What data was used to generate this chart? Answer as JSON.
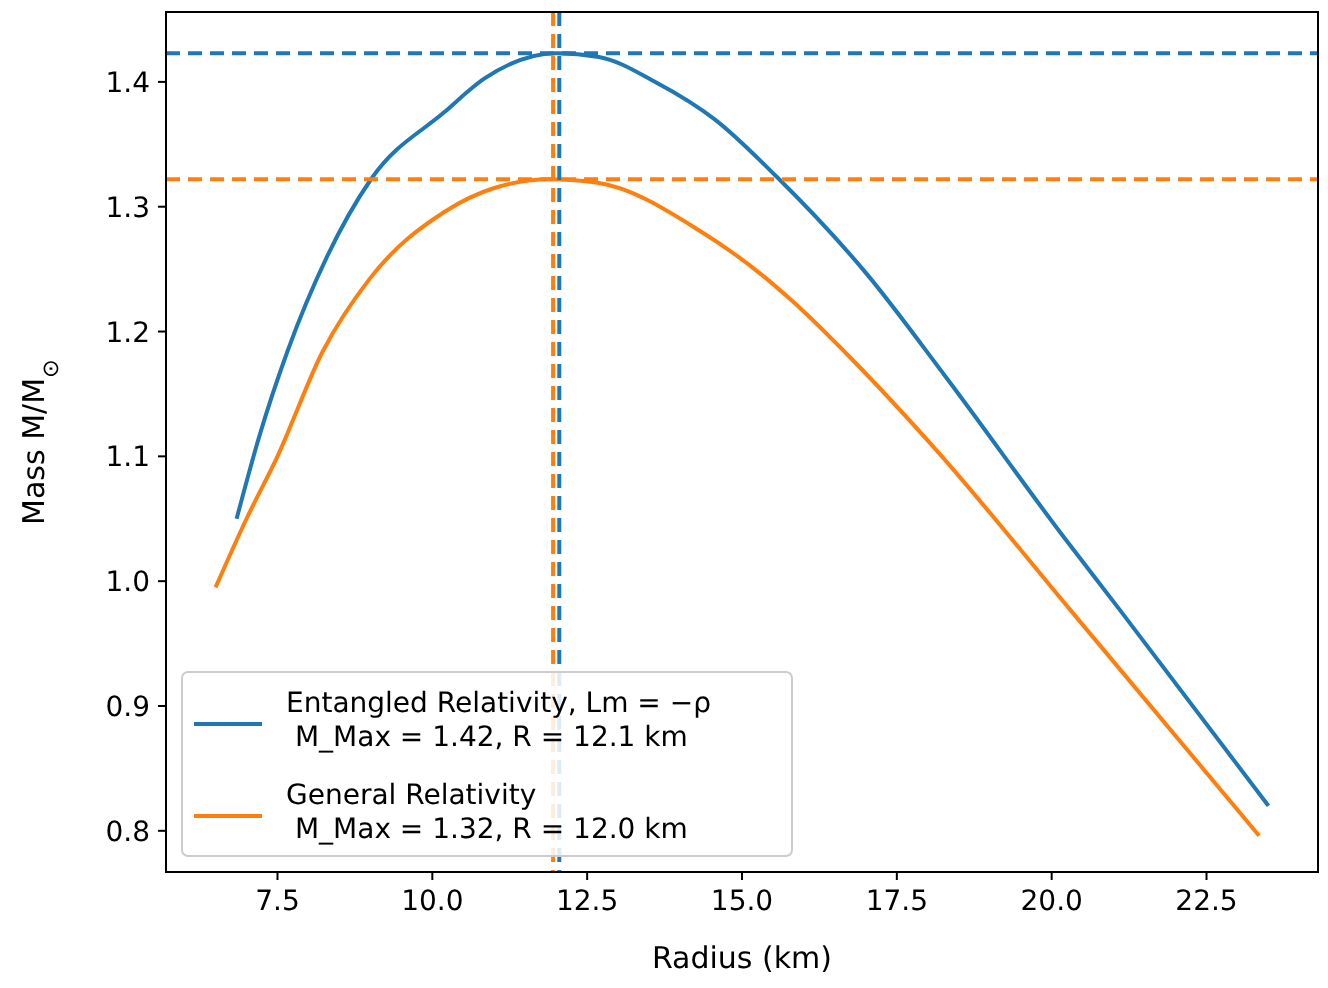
{
  "chart_data": {
    "type": "line",
    "xlabel": "Radius (km)",
    "ylabel": "Mass M/M$_{⊙}$",
    "xlim": [
      5.7,
      24.3
    ],
    "ylim": [
      0.767,
      1.456
    ],
    "xticks": [
      {
        "value": 7.5,
        "label": "7.5"
      },
      {
        "value": 10,
        "label": "10.0"
      },
      {
        "value": 12.5,
        "label": "12.5"
      },
      {
        "value": 15,
        "label": "15.0"
      },
      {
        "value": 17.5,
        "label": "17.5"
      },
      {
        "value": 20,
        "label": "20.0"
      },
      {
        "value": 22.5,
        "label": "22.5"
      }
    ],
    "yticks": [
      {
        "value": 0.8,
        "label": "0.8"
      },
      {
        "value": 0.9,
        "label": "0.9"
      },
      {
        "value": 1.0,
        "label": "1.0"
      },
      {
        "value": 1.1,
        "label": "1.1"
      },
      {
        "value": 1.2,
        "label": "1.2"
      },
      {
        "value": 1.3,
        "label": "1.3"
      },
      {
        "value": 1.4,
        "label": "1.4"
      }
    ],
    "grid": false,
    "legend": "bottom left",
    "line_style": "solid",
    "marker": "none",
    "series": [
      {
        "name": "Entangled Relativity, Lm = −ρ\n M_Max = 1.42, R = 12.1 km",
        "color": "#1f77b4",
        "x": [
          6.84,
          7.2,
          7.66,
          8.3,
          9.01,
          10.2,
          10.85,
          12.0,
          12.69,
          13.6,
          14.56,
          15.56,
          17.0,
          18.3,
          20.17,
          21.1,
          23.5
        ],
        "values": [
          1.05,
          1.115,
          1.184,
          1.26,
          1.322,
          1.376,
          1.403,
          1.423,
          1.42,
          1.4,
          1.37,
          1.324,
          1.247,
          1.163,
          1.037,
          0.977,
          0.82
        ]
      },
      {
        "name": "General Relativity\n M_Max = 1.32, R = 12.0 km",
        "color": "#ff7f0e",
        "x": [
          6.5,
          7.0,
          7.5,
          8.23,
          9.0,
          10.2,
          11.0,
          11.9,
          12.69,
          14.31,
          15.38,
          15.8,
          16.81,
          18.12,
          20.3,
          23.35
        ],
        "values": [
          0.995,
          1.05,
          1.1,
          1.184,
          1.243,
          1.296,
          1.315,
          1.322,
          1.319,
          1.281,
          1.243,
          1.225,
          1.176,
          1.106,
          0.977,
          0.796
        ]
      }
    ],
    "ref_lines": [
      {
        "axis": "y",
        "value": 1.423,
        "color": "#1f77b4",
        "line_style": "dashed"
      },
      {
        "axis": "x",
        "value": 12.05,
        "color": "#1f77b4",
        "line_style": "dashed"
      },
      {
        "axis": "y",
        "value": 1.322,
        "color": "#ff7f0e",
        "line_style": "dashed"
      },
      {
        "axis": "x",
        "value": 11.95,
        "color": "#ff7f0e",
        "line_style": "dashed"
      }
    ]
  }
}
